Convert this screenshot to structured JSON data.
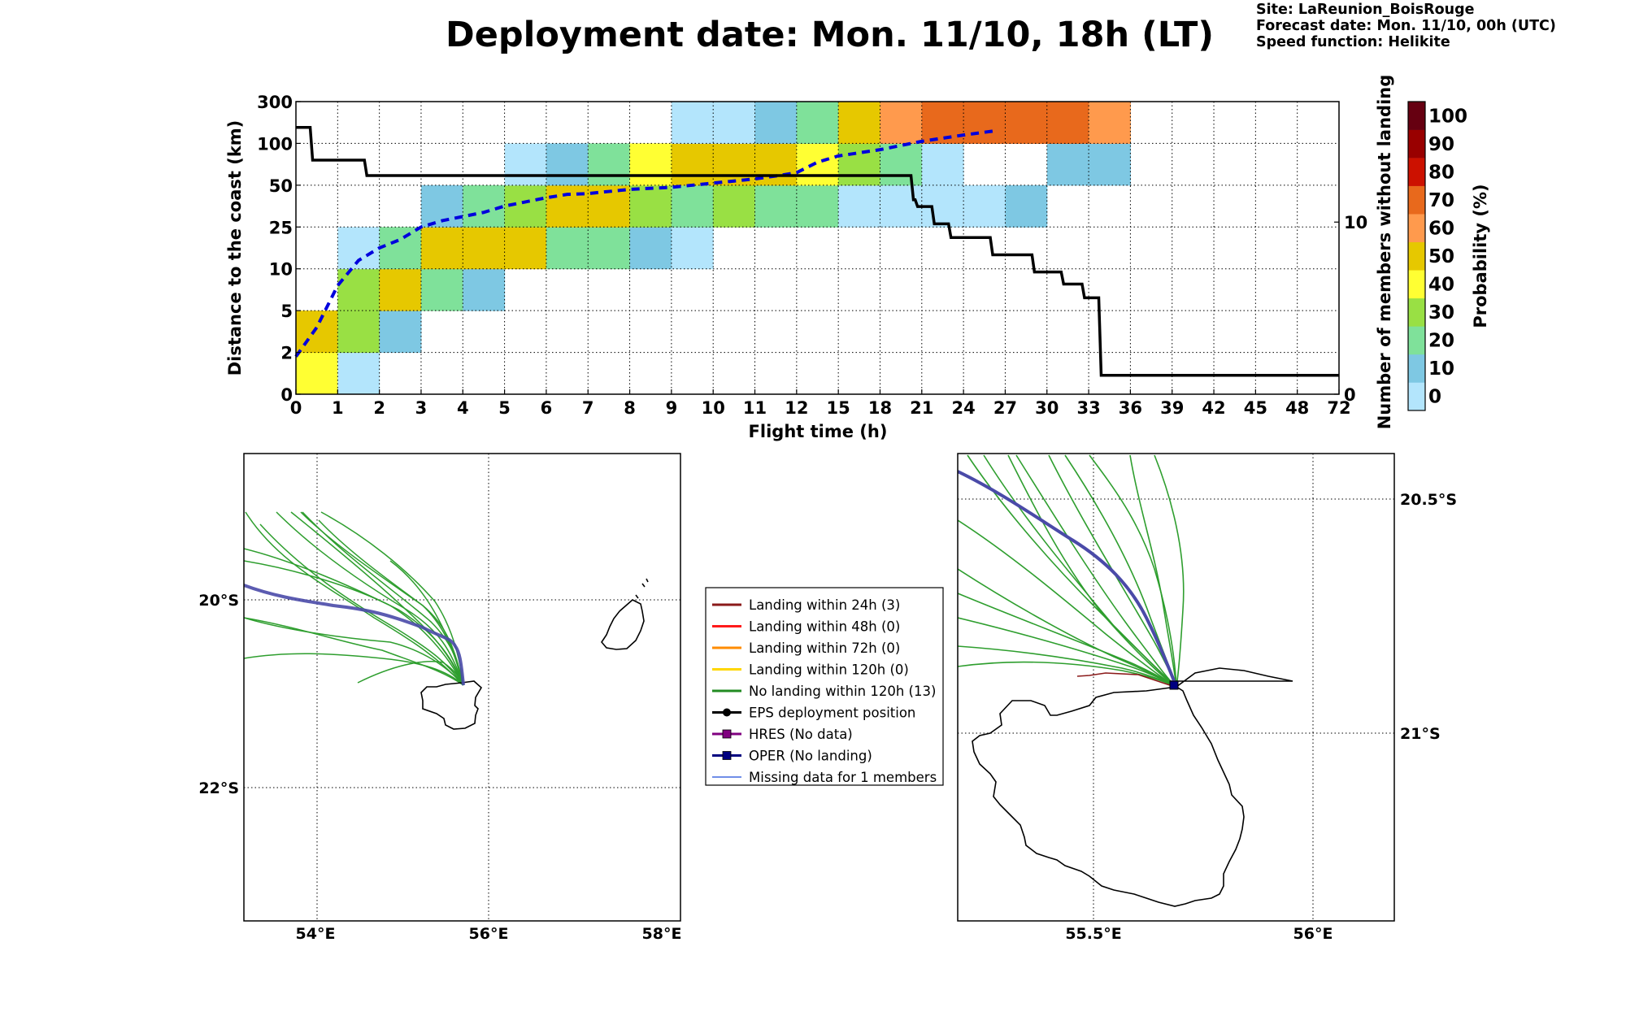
{
  "title": "Deployment date: Mon. 11/10, 18h (LT)",
  "site_info": {
    "site": "Site: LaReunion_BoisRouge",
    "forecast": "Forecast date: Mon. 11/10, 00h (UTC)",
    "speed": "Speed function: Helikite"
  },
  "chart_data": [
    {
      "type": "heatmap",
      "xlabel": "Flight time (h)",
      "ylabel": "Distance to the coast (km)",
      "y2label": "Number of members without landing",
      "x_ticks": [
        "0",
        "1",
        "2",
        "3",
        "4",
        "5",
        "6",
        "7",
        "8",
        "9",
        "10",
        "11",
        "12",
        "15",
        "18",
        "21",
        "24",
        "27",
        "30",
        "33",
        "36",
        "39",
        "42",
        "45",
        "48",
        "72"
      ],
      "y_ticks": [
        "0",
        "2",
        "5",
        "10",
        "25",
        "50",
        "100",
        "300"
      ],
      "y2_ticks": [
        "0",
        "10"
      ],
      "y2_range": [
        0,
        17
      ],
      "grid": true,
      "colorbar": {
        "label": "Probability (%)",
        "ticks": [
          "0",
          "10",
          "20",
          "30",
          "40",
          "50",
          "60",
          "70",
          "80",
          "90",
          "100"
        ],
        "colors": [
          "#b3e5fc",
          "#7ec8e3",
          "#7fe19a",
          "#99e044",
          "#ffff33",
          "#e6c800",
          "#ff9a4d",
          "#e8691c",
          "#cc1100",
          "#990000",
          "#660011"
        ]
      },
      "cells_note": "Each cell: [x_bin_index, y_bin_index, probability class 0-10]",
      "cells": [
        [
          0,
          0,
          4
        ],
        [
          1,
          0,
          0
        ],
        [
          0,
          1,
          5
        ],
        [
          1,
          1,
          3
        ],
        [
          2,
          1,
          1
        ],
        [
          1,
          2,
          3
        ],
        [
          2,
          2,
          5
        ],
        [
          3,
          2,
          2
        ],
        [
          4,
          2,
          1
        ],
        [
          1,
          3,
          0
        ],
        [
          2,
          3,
          2
        ],
        [
          3,
          3,
          5
        ],
        [
          4,
          3,
          5
        ],
        [
          5,
          3,
          5
        ],
        [
          6,
          3,
          2
        ],
        [
          7,
          3,
          2
        ],
        [
          8,
          3,
          1
        ],
        [
          9,
          3,
          0
        ],
        [
          3,
          4,
          1
        ],
        [
          4,
          4,
          2
        ],
        [
          5,
          4,
          3
        ],
        [
          6,
          4,
          5
        ],
        [
          7,
          4,
          5
        ],
        [
          8,
          4,
          3
        ],
        [
          9,
          4,
          2
        ],
        [
          10,
          4,
          3
        ],
        [
          11,
          4,
          2
        ],
        [
          12,
          4,
          2
        ],
        [
          13,
          4,
          0
        ],
        [
          14,
          4,
          0
        ],
        [
          15,
          4,
          0
        ],
        [
          16,
          4,
          0
        ],
        [
          17,
          4,
          1
        ],
        [
          5,
          5,
          0
        ],
        [
          6,
          5,
          1
        ],
        [
          7,
          5,
          2
        ],
        [
          8,
          5,
          4
        ],
        [
          9,
          5,
          5
        ],
        [
          10,
          5,
          5
        ],
        [
          11,
          5,
          5
        ],
        [
          12,
          5,
          4
        ],
        [
          13,
          5,
          3
        ],
        [
          14,
          5,
          2
        ],
        [
          15,
          5,
          0
        ],
        [
          18,
          5,
          1
        ],
        [
          19,
          5,
          1
        ],
        [
          9,
          6,
          0
        ],
        [
          10,
          6,
          0
        ],
        [
          11,
          6,
          1
        ],
        [
          12,
          6,
          2
        ],
        [
          13,
          6,
          5
        ],
        [
          14,
          6,
          6
        ],
        [
          15,
          6,
          7
        ],
        [
          16,
          6,
          7
        ],
        [
          17,
          6,
          7
        ],
        [
          18,
          6,
          7
        ],
        [
          19,
          6,
          6
        ]
      ],
      "median_distance_line": {
        "name": "dashed blue",
        "points": [
          [
            0,
            0.9
          ],
          [
            0.5,
            1.6
          ],
          [
            1,
            2.6
          ],
          [
            1.5,
            3.2
          ],
          [
            2,
            3.5
          ],
          [
            2.5,
            3.7
          ],
          [
            3,
            4.0
          ],
          [
            3.5,
            4.15
          ],
          [
            4,
            4.25
          ],
          [
            4.5,
            4.35
          ],
          [
            5,
            4.5
          ],
          [
            5.5,
            4.6
          ],
          [
            6,
            4.7
          ],
          [
            6.5,
            4.78
          ],
          [
            7,
            4.8
          ],
          [
            7.5,
            4.85
          ],
          [
            8,
            4.9
          ],
          [
            9,
            4.95
          ],
          [
            10,
            5.05
          ],
          [
            11,
            5.15
          ],
          [
            11.5,
            5.22
          ],
          [
            12,
            5.3
          ],
          [
            12.5,
            5.55
          ],
          [
            13,
            5.7
          ],
          [
            14,
            5.85
          ],
          [
            15,
            6.05
          ],
          [
            16,
            6.2
          ],
          [
            16.75,
            6.3
          ]
        ]
      },
      "members_without_landing": {
        "name": "black step",
        "steps": [
          [
            0,
            15.5
          ],
          [
            0.4,
            13.6
          ],
          [
            1.7,
            12.7
          ],
          [
            14.8,
            11.3
          ],
          [
            14.9,
            10.9
          ],
          [
            15.3,
            9.9
          ],
          [
            15.7,
            9.1
          ],
          [
            16.7,
            8.1
          ],
          [
            17.7,
            7.1
          ],
          [
            18.4,
            6.4
          ],
          [
            18.9,
            5.6
          ],
          [
            19.3,
            1.1
          ],
          [
            25,
            1.1
          ]
        ]
      }
    }
  ],
  "left_map": {
    "lon_ticks": [
      "54°E",
      "56°E",
      "58°E"
    ],
    "lat_ticks": [
      "20°S",
      "22°S"
    ]
  },
  "right_map": {
    "lon_ticks": [
      "55.5°E",
      "56°E"
    ],
    "lat_ticks": [
      "20.5°S",
      "21°S"
    ]
  },
  "legend": {
    "items": [
      {
        "label": "Landing within 24h (3)",
        "color": "#8b1a1a",
        "marker": "none"
      },
      {
        "label": "Landing within 48h (0)",
        "color": "#ff1a1a",
        "marker": "none"
      },
      {
        "label": "Landing within 72h (0)",
        "color": "#ff8c00",
        "marker": "none"
      },
      {
        "label": "Landing within 120h (0)",
        "color": "#ffd700",
        "marker": "none"
      },
      {
        "label": "No landing within 120h (13)",
        "color": "#228b22",
        "marker": "none"
      },
      {
        "label": "EPS deployment position",
        "color": "#000000",
        "marker": "circle"
      },
      {
        "label": "HRES (No data)",
        "color": "#800080",
        "marker": "square"
      },
      {
        "label": "OPER (No landing)",
        "color": "#000080",
        "marker": "square"
      },
      {
        "label": "Missing data for 1 members",
        "color": "#4169e1",
        "marker": "thin"
      }
    ]
  },
  "colors": {
    "ensemble_track": "#2e9e2e",
    "oper_track": "#4a4aa8",
    "coast": "#000000"
  }
}
